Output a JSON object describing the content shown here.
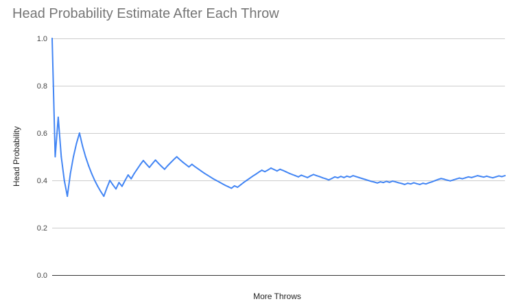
{
  "chart_data": {
    "type": "line",
    "title": "Head Probability Estimate After Each Throw",
    "xlabel": "More Throws",
    "ylabel": "Head Probability",
    "ylim": [
      0,
      1
    ],
    "yticks": [
      "0.0",
      "0.2",
      "0.4",
      "0.6",
      "0.8",
      "1.0"
    ],
    "grid": true,
    "legend": "none",
    "line_color": "#4285f4",
    "x": [
      1,
      2,
      3,
      4,
      5,
      6,
      7,
      8,
      9,
      10,
      11,
      12,
      13,
      14,
      15,
      16,
      17,
      18,
      19,
      20,
      21,
      22,
      23,
      24,
      25,
      26,
      27,
      28,
      29,
      30,
      31,
      32,
      33,
      34,
      35,
      36,
      37,
      38,
      39,
      40,
      41,
      42,
      43,
      44,
      45,
      46,
      47,
      48,
      49,
      50,
      51,
      52,
      53,
      54,
      55,
      56,
      57,
      58,
      59,
      60,
      61,
      62,
      63,
      64,
      65,
      66,
      67,
      68,
      69,
      70,
      71,
      72,
      73,
      74,
      75,
      76,
      77,
      78,
      79,
      80,
      81,
      82,
      83,
      84,
      85,
      86,
      87,
      88,
      89,
      90,
      91,
      92,
      93,
      94,
      95,
      96,
      97,
      98,
      99,
      100,
      101,
      102,
      103,
      104,
      105,
      106,
      107,
      108,
      109,
      110,
      111,
      112,
      113,
      114,
      115,
      116,
      117,
      118,
      119,
      120,
      121,
      122,
      123,
      124,
      125,
      126,
      127,
      128,
      129,
      130,
      131,
      132,
      133,
      134,
      135,
      136,
      137,
      138,
      139,
      140,
      141,
      142,
      143,
      144,
      145,
      146,
      147,
      148,
      149,
      150
    ],
    "values": [
      1.0,
      0.5,
      0.667,
      0.5,
      0.4,
      0.333,
      0.429,
      0.5,
      0.556,
      0.6,
      0.545,
      0.5,
      0.462,
      0.429,
      0.4,
      0.375,
      0.353,
      0.333,
      0.368,
      0.4,
      0.381,
      0.364,
      0.391,
      0.375,
      0.4,
      0.423,
      0.407,
      0.429,
      0.448,
      0.467,
      0.484,
      0.469,
      0.455,
      0.471,
      0.486,
      0.472,
      0.459,
      0.447,
      0.462,
      0.475,
      0.488,
      0.5,
      0.488,
      0.477,
      0.467,
      0.457,
      0.468,
      0.458,
      0.449,
      0.44,
      0.431,
      0.423,
      0.415,
      0.407,
      0.4,
      0.393,
      0.386,
      0.379,
      0.373,
      0.367,
      0.377,
      0.371,
      0.381,
      0.391,
      0.4,
      0.409,
      0.418,
      0.426,
      0.435,
      0.443,
      0.437,
      0.444,
      0.452,
      0.446,
      0.44,
      0.447,
      0.442,
      0.436,
      0.43,
      0.425,
      0.42,
      0.415,
      0.422,
      0.417,
      0.412,
      0.419,
      0.425,
      0.42,
      0.416,
      0.411,
      0.407,
      0.402,
      0.408,
      0.415,
      0.411,
      0.417,
      0.412,
      0.418,
      0.414,
      0.42,
      0.416,
      0.412,
      0.408,
      0.404,
      0.4,
      0.396,
      0.393,
      0.389,
      0.394,
      0.391,
      0.396,
      0.392,
      0.397,
      0.394,
      0.39,
      0.387,
      0.383,
      0.388,
      0.385,
      0.39,
      0.386,
      0.383,
      0.388,
      0.385,
      0.39,
      0.394,
      0.399,
      0.404,
      0.408,
      0.405,
      0.401,
      0.398,
      0.402,
      0.406,
      0.41,
      0.407,
      0.411,
      0.415,
      0.412,
      0.416,
      0.42,
      0.417,
      0.414,
      0.418,
      0.414,
      0.411,
      0.415,
      0.419,
      0.416,
      0.42
    ]
  }
}
